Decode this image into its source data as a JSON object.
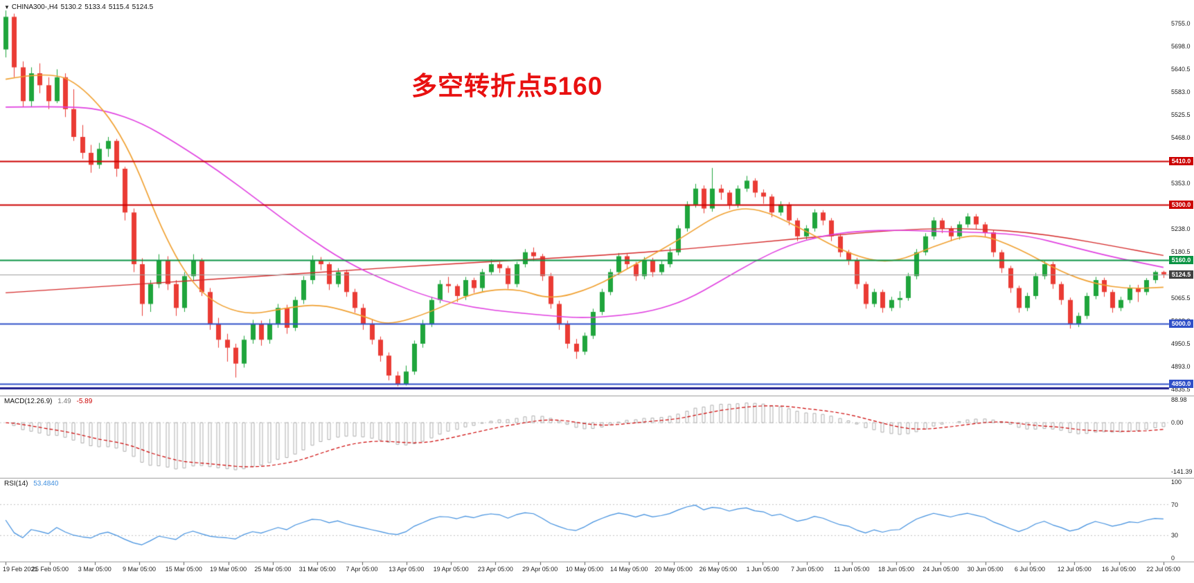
{
  "header": {
    "symbol_timeframe": "CHINA300-,H4",
    "ohlc": {
      "open": "5130.2",
      "high": "5133.4",
      "low": "5115.4",
      "close": "5124.5"
    },
    "dropdown_icon": "symbol-dropdown-icon"
  },
  "colors": {
    "up": "#1fa53c",
    "down": "#ea3b34",
    "ma_fast": "#f0a030",
    "ma_mid": "#e040e0",
    "ma_slow": "#d42929",
    "hist": "#adadad",
    "signal": "#cc0000",
    "rsi": "#3f8ede",
    "level_dotted": "#c0c0c0",
    "separator": "#9a9a9a",
    "bid_line": "#9e9e9e",
    "bid_label_bg": "#404040"
  },
  "chart_data": {
    "type": "candlestick",
    "symbol": "CHINA300-",
    "timeframe": "H4",
    "annotation": {
      "text": "多空转折点5160",
      "color": "#e81010"
    },
    "price_axis": {
      "min": 4830,
      "max": 5790,
      "ticks": [
        "5755.0",
        "5698.0",
        "5640.5",
        "5583.0",
        "5525.5",
        "5468.0",
        "5410.5",
        "5353.0",
        "5295.5",
        "5238.0",
        "5180.5",
        "5123.0",
        "5065.5",
        "5008.0",
        "4950.5",
        "4893.0",
        "4835.5"
      ]
    },
    "time_labels": [
      "19 Feb 2021",
      "25 Feb 05:00",
      "3 Mar 05:00",
      "9 Mar 05:00",
      "15 Mar 05:00",
      "19 Mar 05:00",
      "25 Mar 05:00",
      "31 Mar 05:00",
      "7 Apr 05:00",
      "13 Apr 05:00",
      "19 Apr 05:00",
      "23 Apr 05:00",
      "29 Apr 05:00",
      "10 May 05:00",
      "14 May 05:00",
      "20 May 05:00",
      "26 May 05:00",
      "1 Jun 05:00",
      "7 Jun 05:00",
      "11 Jun 05:00",
      "18 Jun 05:00",
      "24 Jun 05:00",
      "30 Jun 05:00",
      "6 Jul 05:00",
      "12 Jul 05:00",
      "16 Jul 05:00",
      "22 Jul 05:00"
    ],
    "bid": {
      "price": 5124.5,
      "label": "5124.5"
    },
    "hlines": [
      {
        "price": 5410.0,
        "label": "5410.0",
        "color": "#cc0000",
        "width": 2
      },
      {
        "price": 5300.0,
        "label": "5300.0",
        "color": "#cc0000",
        "width": 2
      },
      {
        "price": 5160.0,
        "label": "5160.0",
        "color": "#0b9444",
        "width": 2
      },
      {
        "price": 5000.0,
        "label": "5000.0",
        "color": "#3050c8",
        "width": 2
      },
      {
        "price": 4850.0,
        "label": "4850.0",
        "color": "#3050c8",
        "width": 2
      },
      {
        "price": 4838.0,
        "label": "",
        "color": "#1f1f8f",
        "width": 3
      }
    ],
    "candles": [
      [
        5690,
        5788,
        5670,
        5772
      ],
      [
        5772,
        5780,
        5620,
        5645
      ],
      [
        5645,
        5660,
        5545,
        5560
      ],
      [
        5560,
        5645,
        5545,
        5630
      ],
      [
        5630,
        5655,
        5580,
        5600
      ],
      [
        5600,
        5620,
        5540,
        5560
      ],
      [
        5560,
        5640,
        5555,
        5620
      ],
      [
        5620,
        5630,
        5520,
        5540
      ],
      [
        5540,
        5590,
        5460,
        5470
      ],
      [
        5470,
        5500,
        5415,
        5430
      ],
      [
        5430,
        5450,
        5380,
        5400
      ],
      [
        5400,
        5455,
        5390,
        5440
      ],
      [
        5440,
        5470,
        5420,
        5460
      ],
      [
        5460,
        5465,
        5370,
        5390
      ],
      [
        5390,
        5395,
        5260,
        5280
      ],
      [
        5280,
        5290,
        5130,
        5150
      ],
      [
        5150,
        5165,
        5020,
        5050
      ],
      [
        5050,
        5110,
        5030,
        5100
      ],
      [
        5100,
        5175,
        5090,
        5160
      ],
      [
        5160,
        5170,
        5085,
        5100
      ],
      [
        5100,
        5110,
        5020,
        5040
      ],
      [
        5040,
        5130,
        5030,
        5120
      ],
      [
        5120,
        5175,
        5110,
        5160
      ],
      [
        5160,
        5165,
        5070,
        5080
      ],
      [
        5080,
        5090,
        4985,
        5000
      ],
      [
        5000,
        5015,
        4940,
        4960
      ],
      [
        4960,
        4975,
        4905,
        4940
      ],
      [
        4940,
        4950,
        4865,
        4900
      ],
      [
        4900,
        4970,
        4890,
        4960
      ],
      [
        4960,
        5010,
        4950,
        5000
      ],
      [
        5000,
        5008,
        4945,
        4960
      ],
      [
        4960,
        5012,
        4950,
        5000
      ],
      [
        5000,
        5050,
        4990,
        5040
      ],
      [
        5040,
        5048,
        4975,
        4990
      ],
      [
        4990,
        5068,
        4982,
        5060
      ],
      [
        5060,
        5120,
        5050,
        5110
      ],
      [
        5110,
        5172,
        5100,
        5160
      ],
      [
        5160,
        5168,
        5135,
        5150
      ],
      [
        5150,
        5155,
        5085,
        5100
      ],
      [
        5100,
        5140,
        5092,
        5130
      ],
      [
        5130,
        5136,
        5068,
        5080
      ],
      [
        5080,
        5088,
        5028,
        5040
      ],
      [
        5040,
        5050,
        4985,
        5000
      ],
      [
        5000,
        5010,
        4948,
        4960
      ],
      [
        4960,
        4968,
        4905,
        4920
      ],
      [
        4920,
        4928,
        4858,
        4870
      ],
      [
        4870,
        4880,
        4843,
        4848
      ],
      [
        4848,
        4895,
        4845,
        4880
      ],
      [
        4880,
        4958,
        4872,
        4950
      ],
      [
        4950,
        5010,
        4940,
        5000
      ],
      [
        5000,
        5068,
        4992,
        5060
      ],
      [
        5060,
        5110,
        5052,
        5100
      ],
      [
        5100,
        5118,
        5078,
        5095
      ],
      [
        5095,
        5100,
        5055,
        5070
      ],
      [
        5070,
        5118,
        5060,
        5110
      ],
      [
        5110,
        5116,
        5078,
        5090
      ],
      [
        5090,
        5138,
        5082,
        5130
      ],
      [
        5130,
        5162,
        5122,
        5150
      ],
      [
        5150,
        5156,
        5128,
        5140
      ],
      [
        5140,
        5146,
        5088,
        5100
      ],
      [
        5100,
        5156,
        5092,
        5150
      ],
      [
        5150,
        5188,
        5142,
        5180
      ],
      [
        5180,
        5192,
        5158,
        5170
      ],
      [
        5170,
        5176,
        5108,
        5120
      ],
      [
        5120,
        5128,
        5038,
        5050
      ],
      [
        5050,
        5058,
        4985,
        5000
      ],
      [
        5000,
        5008,
        4938,
        4950
      ],
      [
        4950,
        4962,
        4912,
        4930
      ],
      [
        4930,
        4978,
        4922,
        4970
      ],
      [
        4970,
        5038,
        4962,
        5030
      ],
      [
        5030,
        5088,
        5022,
        5080
      ],
      [
        5080,
        5138,
        5072,
        5130
      ],
      [
        5130,
        5178,
        5122,
        5170
      ],
      [
        5170,
        5176,
        5138,
        5150
      ],
      [
        5150,
        5156,
        5108,
        5120
      ],
      [
        5120,
        5168,
        5112,
        5160
      ],
      [
        5160,
        5166,
        5118,
        5130
      ],
      [
        5130,
        5158,
        5122,
        5150
      ],
      [
        5150,
        5192,
        5142,
        5180
      ],
      [
        5180,
        5248,
        5172,
        5240
      ],
      [
        5240,
        5308,
        5232,
        5300
      ],
      [
        5300,
        5352,
        5292,
        5340
      ],
      [
        5340,
        5348,
        5278,
        5290
      ],
      [
        5290,
        5392,
        5282,
        5340
      ],
      [
        5340,
        5350,
        5312,
        5330
      ],
      [
        5330,
        5336,
        5288,
        5300
      ],
      [
        5300,
        5348,
        5292,
        5340
      ],
      [
        5340,
        5372,
        5332,
        5360
      ],
      [
        5360,
        5366,
        5318,
        5330
      ],
      [
        5330,
        5338,
        5302,
        5320
      ],
      [
        5320,
        5326,
        5268,
        5280
      ],
      [
        5280,
        5308,
        5272,
        5300
      ],
      [
        5300,
        5306,
        5248,
        5260
      ],
      [
        5260,
        5266,
        5208,
        5220
      ],
      [
        5220,
        5248,
        5212,
        5240
      ],
      [
        5240,
        5288,
        5232,
        5280
      ],
      [
        5280,
        5286,
        5248,
        5260
      ],
      [
        5260,
        5266,
        5208,
        5220
      ],
      [
        5220,
        5226,
        5168,
        5180
      ],
      [
        5180,
        5186,
        5148,
        5160
      ],
      [
        5160,
        5166,
        5088,
        5100
      ],
      [
        5100,
        5106,
        5038,
        5050
      ],
      [
        5050,
        5088,
        5042,
        5080
      ],
      [
        5080,
        5086,
        5028,
        5040
      ],
      [
        5040,
        5068,
        5032,
        5060
      ],
      [
        5060,
        5082,
        5040,
        5065
      ],
      [
        5065,
        5128,
        5058,
        5120
      ],
      [
        5120,
        5188,
        5112,
        5180
      ],
      [
        5180,
        5228,
        5172,
        5220
      ],
      [
        5220,
        5268,
        5212,
        5260
      ],
      [
        5260,
        5266,
        5228,
        5240
      ],
      [
        5240,
        5246,
        5208,
        5220
      ],
      [
        5220,
        5258,
        5212,
        5250
      ],
      [
        5250,
        5278,
        5242,
        5270
      ],
      [
        5270,
        5276,
        5238,
        5250
      ],
      [
        5250,
        5256,
        5218,
        5230
      ],
      [
        5230,
        5236,
        5168,
        5180
      ],
      [
        5180,
        5186,
        5128,
        5140
      ],
      [
        5140,
        5146,
        5078,
        5090
      ],
      [
        5090,
        5096,
        5028,
        5040
      ],
      [
        5040,
        5078,
        5032,
        5070
      ],
      [
        5070,
        5128,
        5062,
        5120
      ],
      [
        5120,
        5158,
        5112,
        5150
      ],
      [
        5150,
        5156,
        5088,
        5100
      ],
      [
        5100,
        5106,
        5048,
        5060
      ],
      [
        5060,
        5066,
        4988,
        5000
      ],
      [
        5000,
        5028,
        4992,
        5020
      ],
      [
        5020,
        5078,
        5012,
        5070
      ],
      [
        5070,
        5118,
        5062,
        5110
      ],
      [
        5110,
        5116,
        5068,
        5080
      ],
      [
        5080,
        5086,
        5028,
        5040
      ],
      [
        5040,
        5068,
        5032,
        5060
      ],
      [
        5060,
        5098,
        5052,
        5090
      ],
      [
        5090,
        5098,
        5055,
        5080
      ],
      [
        5080,
        5115,
        5072,
        5110
      ],
      [
        5110,
        5134,
        5102,
        5130.2
      ],
      [
        5130.2,
        5133.4,
        5115.4,
        5124.5
      ]
    ],
    "overlays": {
      "ma_fast_orange": [
        [
          0,
          5615
        ],
        [
          5,
          5635
        ],
        [
          9,
          5600
        ],
        [
          14,
          5470
        ],
        [
          19,
          5200
        ],
        [
          23,
          5070
        ],
        [
          28,
          5020
        ],
        [
          33,
          5040
        ],
        [
          37,
          5050
        ],
        [
          42,
          5020
        ],
        [
          45,
          4995
        ],
        [
          50,
          5030
        ],
        [
          55,
          5080
        ],
        [
          60,
          5090
        ],
        [
          64,
          5060
        ],
        [
          69,
          5090
        ],
        [
          74,
          5150
        ],
        [
          79,
          5210
        ],
        [
          84,
          5280
        ],
        [
          88,
          5295
        ],
        [
          93,
          5245
        ],
        [
          99,
          5175
        ],
        [
          104,
          5150
        ],
        [
          109,
          5195
        ],
        [
          114,
          5230
        ],
        [
          119,
          5190
        ],
        [
          124,
          5130
        ],
        [
          128,
          5100
        ],
        [
          132,
          5088
        ],
        [
          136,
          5092
        ]
      ],
      "ma_mid_magenta": [
        [
          0,
          5545
        ],
        [
          8,
          5548
        ],
        [
          12,
          5535
        ],
        [
          16,
          5505
        ],
        [
          20,
          5455
        ],
        [
          25,
          5385
        ],
        [
          30,
          5305
        ],
        [
          35,
          5225
        ],
        [
          40,
          5155
        ],
        [
          45,
          5105
        ],
        [
          50,
          5065
        ],
        [
          55,
          5040
        ],
        [
          60,
          5028
        ],
        [
          65,
          5018
        ],
        [
          68,
          5015
        ],
        [
          72,
          5020
        ],
        [
          76,
          5032
        ],
        [
          80,
          5060
        ],
        [
          84,
          5108
        ],
        [
          88,
          5158
        ],
        [
          92,
          5198
        ],
        [
          96,
          5222
        ],
        [
          100,
          5233
        ],
        [
          105,
          5236
        ],
        [
          110,
          5232
        ],
        [
          115,
          5230
        ],
        [
          120,
          5222
        ],
        [
          125,
          5195
        ],
        [
          130,
          5168
        ],
        [
          136,
          5142
        ]
      ],
      "ma_slow_red": [
        [
          0,
          5078
        ],
        [
          10,
          5092
        ],
        [
          20,
          5106
        ],
        [
          30,
          5120
        ],
        [
          40,
          5134
        ],
        [
          50,
          5148
        ],
        [
          60,
          5160
        ],
        [
          70,
          5172
        ],
        [
          80,
          5188
        ],
        [
          90,
          5208
        ],
        [
          95,
          5218
        ],
        [
          100,
          5228
        ],
        [
          105,
          5236
        ],
        [
          110,
          5240
        ],
        [
          115,
          5238
        ],
        [
          120,
          5230
        ],
        [
          125,
          5215
        ],
        [
          130,
          5196
        ],
        [
          136,
          5172
        ]
      ]
    },
    "indicators": [
      {
        "label": "MACD(12.26.9)",
        "value1": "1.49",
        "value2": "-5.89",
        "axis_labels": [
          "88.98",
          "0.00",
          "-141.39"
        ],
        "params": [
          12,
          26,
          9
        ]
      },
      {
        "label": "RSI(14)",
        "value1": "53.4840",
        "axis_labels": [
          "100",
          "70",
          "30",
          "0"
        ],
        "levels": [
          70,
          30
        ],
        "params": [
          14
        ]
      }
    ]
  }
}
